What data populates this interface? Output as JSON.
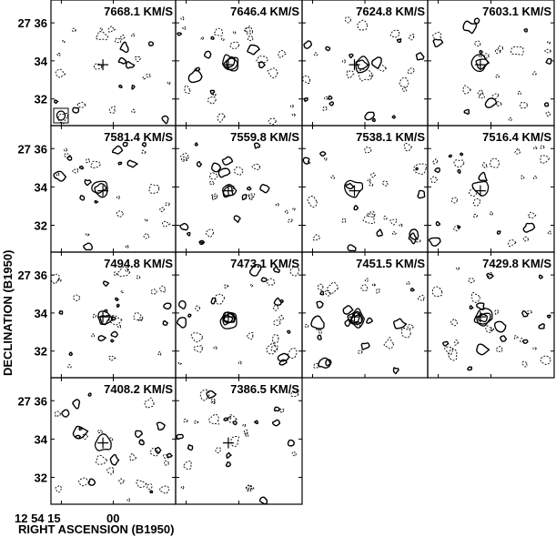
{
  "chart_data": {
    "type": "contour",
    "panel_layout": "4-column grid, 14 channel maps",
    "xlabel": "RIGHT ASCENSION (B1950)",
    "ylabel": "DECLINATION (B1950)",
    "x_ticks": [
      "12 54 15",
      "00"
    ],
    "y_ticks": [
      "27 36",
      "34",
      "32"
    ],
    "y_tick_values_arcmin": [
      36,
      34,
      32
    ],
    "ylim_arcmin": [
      30.6,
      37.2
    ],
    "x_tick_values_sec": [
      15,
      0
    ],
    "xlim_sec": [
      18,
      -18
    ],
    "contour_styles": {
      "positive": "solid",
      "negative": "dashed"
    },
    "beam_shown_in_panel": 0,
    "panels": [
      {
        "velocity": "7668.1 KM/S"
      },
      {
        "velocity": "7646.4 KM/S"
      },
      {
        "velocity": "7624.8 KM/S"
      },
      {
        "velocity": "7603.1 KM/S"
      },
      {
        "velocity": "7581.4 KM/S"
      },
      {
        "velocity": "7559.8 KM/S"
      },
      {
        "velocity": "7538.1 KM/S"
      },
      {
        "velocity": "7516.4 KM/S"
      },
      {
        "velocity": "7494.8 KM/S"
      },
      {
        "velocity": "7473.1 KM/S"
      },
      {
        "velocity": "7451.5 KM/S"
      },
      {
        "velocity": "7429.8 KM/S"
      },
      {
        "velocity": "7408.2 KM/S"
      },
      {
        "velocity": "7386.5 KM/S"
      }
    ],
    "source_marker": {
      "type": "cross",
      "ra_sec": 3,
      "dec_arcmin": 33.8
    },
    "emission": [
      {
        "panel": 1,
        "ra_sec": 2.5,
        "dec_arcmin": 33.9,
        "levels": 3
      },
      {
        "panel": 2,
        "ra_sec": 1,
        "dec_arcmin": 33.8,
        "levels": 2
      },
      {
        "panel": 3,
        "ra_sec": 2.8,
        "dec_arcmin": 33.9,
        "levels": 2
      },
      {
        "panel": 4,
        "ra_sec": 4,
        "dec_arcmin": 33.9,
        "levels": 2
      },
      {
        "panel": 5,
        "ra_sec": 3,
        "dec_arcmin": 33.8,
        "levels": 2
      },
      {
        "panel": 6,
        "ra_sec": 3,
        "dec_arcmin": 33.9,
        "levels": 1
      },
      {
        "panel": 7,
        "ra_sec": 3,
        "dec_arcmin": 34.0,
        "levels": 1
      },
      {
        "panel": 8,
        "ra_sec": 2.5,
        "dec_arcmin": 33.7,
        "levels": 2
      },
      {
        "panel": 9,
        "ra_sec": 3,
        "dec_arcmin": 33.7,
        "levels": 4
      },
      {
        "panel": 10,
        "ra_sec": 2.5,
        "dec_arcmin": 33.7,
        "levels": 4
      },
      {
        "panel": 11,
        "ra_sec": 2,
        "dec_arcmin": 33.7,
        "levels": 3
      },
      {
        "panel": 12,
        "ra_sec": 3,
        "dec_arcmin": 33.8,
        "levels": 1
      }
    ]
  }
}
